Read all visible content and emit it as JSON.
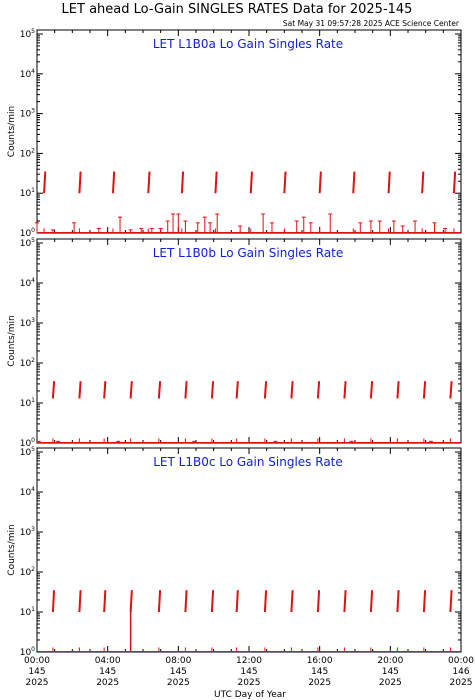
{
  "header": {
    "title": "LET ahead Lo-Gain SINGLES RATES Data for 2025-145",
    "timestamp": "Sat May 31 09:57:28 2025 ACE Science Center"
  },
  "ylabel": "Counts/min",
  "xlabel": "UTC Day of Year",
  "colors": {
    "data": "#e01010",
    "panel_title": "#1020e0",
    "axes": "#000000"
  },
  "y_tick_labels": [
    {
      "base": "10",
      "exp": "0"
    },
    {
      "base": "10",
      "exp": "1"
    },
    {
      "base": "10",
      "exp": "2"
    },
    {
      "base": "10",
      "exp": "3"
    },
    {
      "base": "10",
      "exp": "4"
    },
    {
      "base": "10",
      "exp": "5"
    }
  ],
  "x_tick_labels": [
    {
      "time": "00:00",
      "doy": "145",
      "year": "2025"
    },
    {
      "time": "04:00",
      "doy": "145",
      "year": "2025"
    },
    {
      "time": "08:00",
      "doy": "145",
      "year": "2025"
    },
    {
      "time": "12:00",
      "doy": "145",
      "year": "2025"
    },
    {
      "time": "16:00",
      "doy": "145",
      "year": "2025"
    },
    {
      "time": "20:00",
      "doy": "145",
      "year": "2025"
    },
    {
      "time": "00:00",
      "doy": "146",
      "year": "2025"
    }
  ],
  "chart_data": [
    {
      "type": "scatter",
      "title": "LET L1B0a Lo Gain Singles Rate",
      "ylabel": "Counts/min",
      "xlabel": "UTC Day of Year",
      "y_scale": "log",
      "ylim": [
        1,
        100000
      ],
      "xlim_hours": [
        0,
        24
      ],
      "series": [
        {
          "spike_times_hours": [
            0.4,
            2.4,
            4.3,
            6.3,
            8.2,
            10.1,
            12.1,
            14.0,
            16.0,
            17.9,
            19.9,
            21.8,
            23.6
          ],
          "spike_range": [
            10,
            35
          ],
          "background_times_hours": [
            0.0,
            0.9,
            2.1,
            3.5,
            4.7,
            5.3,
            5.9,
            6.5,
            7.0,
            7.4,
            7.7,
            8.0,
            8.4,
            9.1,
            9.5,
            9.8,
            10.2,
            11.5,
            12.8,
            13.3,
            14.7,
            15.1,
            15.5,
            16.6,
            18.3,
            18.9,
            19.4,
            20.2,
            20.7,
            21.4,
            22.5,
            23.1
          ],
          "background_values": [
            1.8,
            1.2,
            1.8,
            1.3,
            2.5,
            1.2,
            1.3,
            1.3,
            1.3,
            2.0,
            3.0,
            3.0,
            2.0,
            1.8,
            2.5,
            1.8,
            3.0,
            1.5,
            3.0,
            1.8,
            2.0,
            2.5,
            1.8,
            3.0,
            1.8,
            2.0,
            2.0,
            2.0,
            1.5,
            2.0,
            1.8,
            1.3
          ]
        }
      ]
    },
    {
      "type": "scatter",
      "title": "LET L1B0b Lo Gain Singles Rate",
      "ylabel": "Counts/min",
      "xlabel": "UTC Day of Year",
      "y_scale": "log",
      "ylim": [
        1,
        100000
      ],
      "xlim_hours": [
        0,
        24
      ],
      "series": [
        {
          "spike_times_hours": [
            0.9,
            2.4,
            3.8,
            5.3,
            6.9,
            8.4,
            9.9,
            11.3,
            12.9,
            14.4,
            15.9,
            17.4,
            18.9,
            20.4,
            21.9,
            23.4
          ],
          "spike_range": [
            13,
            35
          ],
          "background_times_hours": [
            0.1,
            1.2,
            4.6,
            8.9,
            13.5,
            17.8,
            22.3
          ],
          "background_values": [
            1.1,
            1.1,
            1.1,
            1.1,
            1.1,
            1.1,
            1.1
          ]
        }
      ]
    },
    {
      "type": "scatter",
      "title": "LET L1B0c Lo Gain Singles Rate",
      "ylabel": "Counts/min",
      "xlabel": "UTC Day of Year",
      "y_scale": "log",
      "ylim": [
        1,
        100000
      ],
      "xlim_hours": [
        0,
        24
      ],
      "series": [
        {
          "spike_times_hours": [
            0.9,
            2.4,
            3.8,
            5.3,
            6.9,
            8.4,
            9.9,
            11.3,
            12.9,
            14.4,
            15.9,
            17.4,
            18.9,
            20.4,
            21.9,
            23.4
          ],
          "spike_range": [
            10,
            35
          ],
          "deep_spike_time_hours": 5.3,
          "deep_spike_min": 1.0,
          "background_times_hours": [],
          "background_values": []
        }
      ]
    }
  ]
}
